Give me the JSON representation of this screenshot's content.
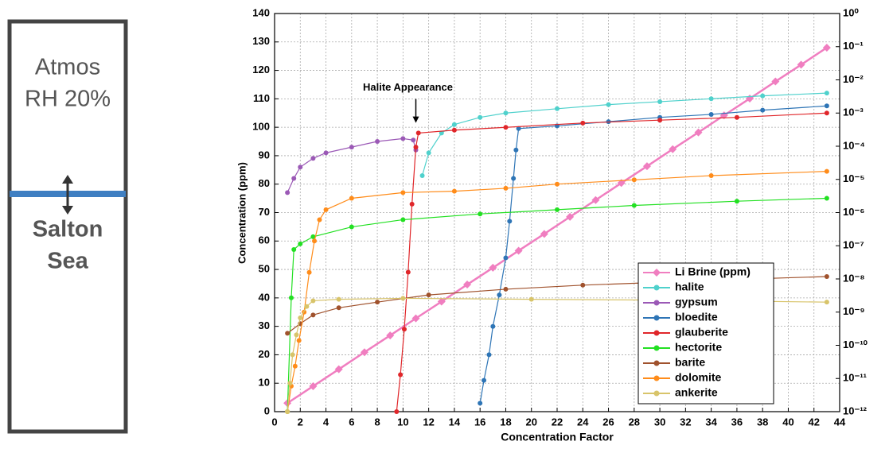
{
  "panel": {
    "top_lines": [
      "Atmos",
      "RH 20%"
    ],
    "bottom_lines": [
      "Salton",
      "Sea"
    ]
  },
  "chart_data": {
    "type": "line",
    "xlabel": "Concentration Factor",
    "ylabel": "Concentration (ppm)",
    "xlim": [
      0,
      44
    ],
    "xticks": [
      0,
      2,
      4,
      6,
      8,
      10,
      12,
      14,
      16,
      18,
      20,
      22,
      24,
      26,
      28,
      30,
      32,
      34,
      36,
      38,
      40,
      42,
      44
    ],
    "ylim": [
      0,
      140
    ],
    "yticks": [
      0,
      10,
      20,
      30,
      40,
      50,
      60,
      70,
      80,
      90,
      100,
      110,
      120,
      130,
      140
    ],
    "y2lim": [
      1e-12,
      1
    ],
    "y2log": true,
    "y2ticks": [
      {
        "value": 1e-12,
        "label": "10⁻¹²"
      },
      {
        "value": 1e-11,
        "label": "10⁻¹¹"
      },
      {
        "value": 1e-10,
        "label": "10⁻¹⁰"
      },
      {
        "value": 1e-09,
        "label": "10⁻⁹"
      },
      {
        "value": 1e-08,
        "label": "10⁻⁸"
      },
      {
        "value": 1e-07,
        "label": "10⁻⁷"
      },
      {
        "value": 1e-06,
        "label": "10⁻⁶"
      },
      {
        "value": 1e-05,
        "label": "10⁻⁵"
      },
      {
        "value": 0.0001,
        "label": "10⁻⁴"
      },
      {
        "value": 0.001,
        "label": "10⁻³"
      },
      {
        "value": 0.01,
        "label": "10⁻²"
      },
      {
        "value": 0.1,
        "label": "10⁻¹"
      },
      {
        "value": 1,
        "label": "10⁰"
      }
    ],
    "grid": true,
    "legend": "right",
    "annotations": [
      {
        "text": "Halite Appearance",
        "x": 11,
        "y": 101
      }
    ],
    "series": [
      {
        "name": "Li Brine (ppm)",
        "color": "#f07ec0",
        "marker": "diamond",
        "x": [
          1,
          3,
          5,
          7,
          9,
          11,
          13,
          15,
          17,
          19,
          21,
          23,
          25,
          27,
          29,
          31,
          33,
          35,
          37,
          39,
          41,
          43
        ],
        "values": [
          3,
          8.95,
          14.9,
          20.9,
          26.8,
          32.8,
          38.7,
          44.7,
          50.6,
          56.6,
          62.5,
          68.5,
          74.4,
          80.4,
          86.3,
          92.3,
          98.2,
          104.2,
          110.1,
          116.1,
          122,
          128
        ]
      },
      {
        "name": "halite",
        "color": "#4fd1cc",
        "axis": "y2",
        "x": [
          11.5,
          12,
          13,
          14,
          16,
          18,
          22,
          26,
          30,
          34,
          38,
          43
        ],
        "values": [
          1.3e-05,
          6.3e-05,
          0.00025,
          0.00045,
          0.00074,
          0.001,
          0.00135,
          0.0018,
          0.0022,
          0.0027,
          0.0033,
          0.004
        ]
      },
      {
        "name": "gypsum",
        "color": "#9b59b6",
        "axis": "y2",
        "x": [
          1,
          1.5,
          2,
          3,
          4,
          6,
          8,
          10,
          10.8,
          11
        ],
        "values": [
          4e-06,
          1.07e-05,
          2.35e-05,
          4.3e-05,
          6.3e-05,
          9.4e-05,
          0.000139,
          0.00017,
          0.000153,
          7.7e-05
        ]
      },
      {
        "name": "bloedite",
        "color": "#2e75b6",
        "axis": "y2",
        "x": [
          16,
          16.3,
          16.7,
          17,
          17.5,
          18,
          18.3,
          18.6,
          18.8,
          19,
          22,
          26,
          30,
          34,
          38,
          43
        ],
        "values": [
          1.8e-12,
          8.8e-12,
          5.2e-11,
          3.7e-10,
          3.3e-09,
          4.3e-08,
          5.5e-07,
          1.07e-05,
          7.7e-05,
          0.00034,
          0.00041,
          0.00055,
          0.00074,
          0.00091,
          0.00122,
          0.00164
        ]
      },
      {
        "name": "glauberite",
        "color": "#e0262a",
        "axis": "y2",
        "x": [
          9.5,
          9.8,
          10.1,
          10.4,
          10.7,
          11,
          11.2,
          14,
          18,
          24,
          30,
          36,
          43
        ],
        "values": [
          1e-12,
          1.3e-11,
          3.06e-10,
          1.6e-08,
          1.8e-06,
          9.4e-05,
          0.00025,
          0.000306,
          0.00037,
          0.0005,
          0.00061,
          0.00074,
          0.001
        ]
      },
      {
        "name": "hectorite",
        "color": "#22e022",
        "axis": "y2",
        "x": [
          1,
          1.3,
          1.5,
          2,
          3,
          6,
          10,
          16,
          22,
          28,
          36,
          43
        ],
        "values": [
          1e-12,
          2.7e-09,
          7.7e-08,
          1.14e-07,
          1.87e-07,
          3.7e-07,
          6.1e-07,
          9.1e-07,
          1.22e-06,
          1.64e-06,
          2.2e-06,
          2.7e-06
        ]
      },
      {
        "name": "barite",
        "color": "#a0522d",
        "axis": "y2",
        "x": [
          1,
          2,
          3,
          5,
          8,
          12,
          18,
          24,
          30,
          36,
          43
        ],
        "values": [
          2.3e-10,
          4.5e-10,
          8.2e-10,
          1.35e-09,
          2e-09,
          3.3e-09,
          4.9e-09,
          6.5e-09,
          7.9e-09,
          9.7e-09,
          1.18e-08
        ]
      },
      {
        "name": "dolomite",
        "color": "#ff8c1a",
        "axis": "y2",
        "x": [
          1,
          1.3,
          1.6,
          1.9,
          2.3,
          2.7,
          3.1,
          3.5,
          4,
          6,
          10,
          14,
          18,
          22,
          28,
          34,
          43
        ],
        "values": [
          1e-12,
          5.9e-12,
          2.35e-11,
          1.39e-10,
          1e-09,
          1.58e-08,
          1.39e-07,
          6.1e-07,
          1.22e-06,
          2.7e-06,
          4e-06,
          4.4e-06,
          5.4e-06,
          7.2e-06,
          9.7e-06,
          1.3e-05,
          1.75e-05
        ]
      },
      {
        "name": "ankerite",
        "color": "#d8c46a",
        "axis": "y2",
        "x": [
          1,
          1.2,
          1.4,
          1.7,
          2,
          2.5,
          3,
          5,
          10,
          20,
          30,
          43
        ],
        "values": [
          1e-12,
          7.2e-12,
          5.2e-11,
          2.06e-10,
          6.7e-10,
          1.48e-09,
          2.2e-09,
          2.43e-09,
          2.6e-09,
          2.43e-09,
          2.3e-09,
          2e-09
        ]
      }
    ]
  }
}
